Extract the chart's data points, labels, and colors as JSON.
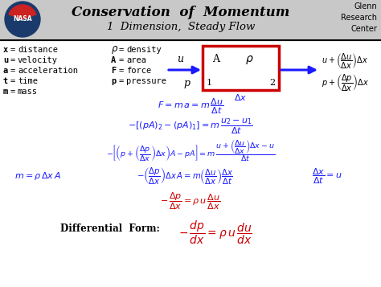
{
  "title": "Conservation  of  Momentum",
  "subtitle": "1  Dimension,  Steady Flow",
  "background_color": "#ffffff",
  "blue_color": "#1a1aff",
  "red_color": "#cc0000",
  "black_color": "#000000",
  "header_bg": "#c8c8c8",
  "left_labels": [
    [
      "x",
      "distance"
    ],
    [
      "u",
      "velocity"
    ],
    [
      "a",
      "acceleration"
    ],
    [
      "t",
      "time"
    ],
    [
      "m",
      "mass"
    ]
  ],
  "mid_labels": [
    [
      "ρ",
      "density"
    ],
    [
      "A",
      "area"
    ],
    [
      "F",
      "force"
    ],
    [
      "p",
      "pressure"
    ]
  ]
}
